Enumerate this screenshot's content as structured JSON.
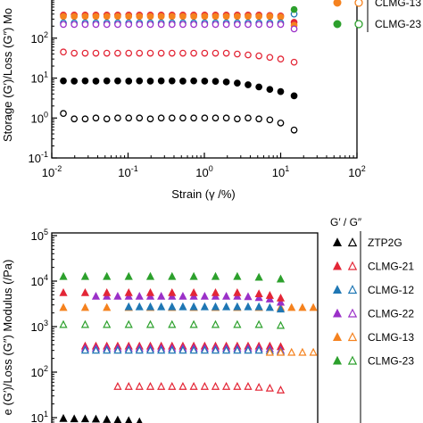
{
  "chart_data": [
    {
      "type": "scatter",
      "panel": "top",
      "xscale": "log",
      "yscale": "log",
      "xlabel": "Strain (γ /%)",
      "ylabel": "Storage (G′)/Loss (G″) Mo",
      "xlim": [
        0.01,
        100
      ],
      "ylim": [
        0.1,
        1000
      ],
      "x_tick_labels": [
        {
          "value": 0.01,
          "base": "10",
          "exp": "-2"
        },
        {
          "value": 0.1,
          "base": "10",
          "exp": "-1"
        },
        {
          "value": 1,
          "base": "10",
          "exp": "0"
        },
        {
          "value": 10,
          "base": "10",
          "exp": "1"
        },
        {
          "value": 100,
          "base": "10",
          "exp": "2"
        }
      ],
      "y_tick_labels": [
        {
          "value": 0.1,
          "base": "10",
          "exp": "-1"
        },
        {
          "value": 1,
          "base": "10",
          "exp": "0"
        },
        {
          "value": 10,
          "base": "10",
          "exp": "1"
        },
        {
          "value": 100,
          "base": "10",
          "exp": "2"
        }
      ],
      "legend": [
        {
          "name": "CLMG-13",
          "color": "#f5821f"
        },
        {
          "name": "CLMG-23",
          "color": "#2ca02c"
        }
      ],
      "series": [
        {
          "color": "#000000",
          "filled": true,
          "marker": "circle",
          "x": [
            0.0142,
            0.0197,
            0.0274,
            0.0379,
            0.0527,
            0.0732,
            0.102,
            0.141,
            0.196,
            0.272,
            0.377,
            0.523,
            0.726,
            1.01,
            1.4,
            1.94,
            2.7,
            3.74,
            5.19,
            7.21,
            10.0,
            15.0
          ],
          "y": [
            8.5,
            8.4,
            8.5,
            8.4,
            8.5,
            8.5,
            8.4,
            8.5,
            8.4,
            8.5,
            8.5,
            8.4,
            8.5,
            8.4,
            8.3,
            8.0,
            7.5,
            6.8,
            6.0,
            5.2,
            4.6,
            3.6
          ]
        },
        {
          "color": "#000000",
          "filled": false,
          "marker": "circle",
          "x": [
            0.0142,
            0.0197,
            0.0274,
            0.0379,
            0.0527,
            0.0732,
            0.102,
            0.141,
            0.196,
            0.272,
            0.377,
            0.523,
            0.726,
            1.01,
            1.4,
            1.94,
            2.7,
            3.74,
            5.19,
            7.21,
            10.0,
            15.0
          ],
          "y": [
            1.3,
            0.95,
            0.95,
            1.0,
            0.95,
            1.0,
            1.0,
            1.0,
            0.95,
            1.0,
            1.0,
            1.0,
            1.0,
            1.0,
            1.0,
            1.0,
            0.95,
            1.0,
            0.95,
            0.9,
            0.75,
            0.5
          ]
        },
        {
          "color": "#e32636",
          "filled": false,
          "marker": "circle",
          "x": [
            0.0142,
            0.0197,
            0.0274,
            0.0379,
            0.0527,
            0.0732,
            0.102,
            0.141,
            0.196,
            0.272,
            0.377,
            0.523,
            0.726,
            1.01,
            1.4,
            1.94,
            2.7,
            3.74,
            5.19,
            7.21,
            10.0,
            15.0
          ],
          "y": [
            45,
            42,
            42,
            42,
            42,
            42,
            42,
            42,
            42,
            42,
            42,
            42,
            42,
            42,
            42,
            42,
            40,
            38,
            36,
            33,
            30,
            25
          ]
        },
        {
          "color": "#e32636",
          "filled": true,
          "marker": "circle",
          "x": [
            0.0142,
            0.0197,
            0.0274,
            0.0379,
            0.0527,
            0.0732,
            0.102,
            0.141,
            0.196,
            0.272,
            0.377,
            0.523,
            0.726,
            1.01,
            1.4,
            1.94,
            2.7,
            3.74,
            5.19,
            7.21,
            10.0,
            15.0
          ],
          "y": [
            380,
            380,
            380,
            380,
            380,
            380,
            380,
            380,
            380,
            380,
            380,
            380,
            380,
            380,
            380,
            380,
            380,
            380,
            380,
            370,
            360,
            250
          ]
        },
        {
          "color": "#f5821f",
          "filled": true,
          "marker": "circle",
          "x": [
            0.0142,
            0.0197,
            0.0274,
            0.0379,
            0.0527,
            0.0732,
            0.102,
            0.141,
            0.196,
            0.272,
            0.377,
            0.523,
            0.726,
            1.01,
            1.4,
            1.94,
            2.7,
            3.74,
            5.19,
            7.21,
            10.0,
            15.0
          ],
          "y": [
            350,
            350,
            350,
            350,
            350,
            350,
            350,
            350,
            350,
            350,
            350,
            350,
            350,
            350,
            350,
            350,
            350,
            350,
            350,
            350,
            340,
            210
          ]
        },
        {
          "color": "#1f77b4",
          "filled": false,
          "marker": "circle",
          "x": [
            0.0142,
            0.0197,
            0.0274,
            0.0379,
            0.0527,
            0.0732,
            0.102,
            0.141,
            0.196,
            0.272,
            0.377,
            0.523,
            0.726,
            1.01,
            1.4,
            1.94,
            2.7,
            3.74,
            5.19,
            7.21,
            10.0,
            15.0
          ],
          "y": [
            240,
            240,
            240,
            240,
            240,
            240,
            240,
            240,
            240,
            240,
            240,
            240,
            240,
            240,
            240,
            240,
            240,
            240,
            240,
            240,
            240,
            400
          ]
        },
        {
          "color": "#9b30c8",
          "filled": false,
          "marker": "circle",
          "x": [
            0.0142,
            0.0197,
            0.0274,
            0.0379,
            0.0527,
            0.0732,
            0.102,
            0.141,
            0.196,
            0.272,
            0.377,
            0.523,
            0.726,
            1.01,
            1.4,
            1.94,
            2.7,
            3.74,
            5.19,
            7.21,
            10.0,
            15.0
          ],
          "y": [
            220,
            220,
            220,
            220,
            220,
            220,
            220,
            220,
            220,
            220,
            220,
            220,
            220,
            220,
            220,
            220,
            220,
            220,
            220,
            220,
            220,
            170
          ]
        },
        {
          "color": "#2ca02c",
          "filled": true,
          "marker": "circle",
          "x": [
            15.0
          ],
          "y": [
            520
          ]
        }
      ]
    },
    {
      "type": "scatter",
      "panel": "bottom",
      "xscale": "log",
      "yscale": "log",
      "ylabel": "e (G′)/Loss (G″) Modulus (/Pa)",
      "ylim": [
        1,
        100000
      ],
      "y_tick_labels": [
        {
          "value": 10,
          "base": "10",
          "exp": "1"
        },
        {
          "value": 100,
          "base": "10",
          "exp": "2"
        },
        {
          "value": 1000,
          "base": "10",
          "exp": "3"
        },
        {
          "value": 10000,
          "base": "10",
          "exp": "4"
        },
        {
          "value": 100000,
          "base": "10",
          "exp": "5"
        }
      ],
      "legend_title": "G′ / G″",
      "legend": [
        {
          "name": "ZTP2G",
          "color": "#000000"
        },
        {
          "name": "CLMG-21",
          "color": "#e32636"
        },
        {
          "name": "CLMG-12",
          "color": "#1f77b4"
        },
        {
          "name": "CLMG-22",
          "color": "#9b30c8"
        },
        {
          "name": "CLMG-13",
          "color": "#f5821f"
        },
        {
          "name": "CLMG-23",
          "color": "#2ca02c"
        }
      ],
      "series": [
        {
          "color": "#000000",
          "filled": true,
          "marker": "triangle",
          "x": [
            0.0142,
            0.0197,
            0.0274,
            0.0379,
            0.0527,
            0.0732,
            0.102,
            0.141,
            0.196,
            0.272,
            0.377,
            0.523,
            0.726,
            1.01
          ],
          "y": [
            9.5,
            9.3,
            9.3,
            9.2,
            9.0,
            8.8,
            8.5,
            8.0,
            7.0,
            5.6,
            4.3,
            3.0,
            2.0,
            1.2
          ]
        },
        {
          "color": "#e32636",
          "filled": false,
          "marker": "triangle",
          "x": [
            0.0732,
            0.102,
            0.141,
            0.196,
            0.272,
            0.377,
            0.523,
            0.726,
            1.01,
            1.4,
            1.94,
            2.7,
            3.74,
            5.19,
            7.21,
            10.0
          ],
          "y": [
            48,
            48,
            48,
            48,
            48,
            48,
            48,
            48,
            48,
            48,
            48,
            48,
            48,
            46,
            44,
            40
          ]
        },
        {
          "color": "#e32636",
          "filled": true,
          "marker": "triangle",
          "x": [
            0.0274,
            0.0379,
            0.0527,
            0.0732,
            0.102,
            0.141,
            0.196,
            0.272,
            0.377,
            0.523,
            0.726,
            1.01,
            1.4,
            1.94,
            2.7,
            3.74,
            5.19,
            7.21,
            10.0
          ],
          "y": [
            370,
            370,
            370,
            370,
            370,
            370,
            370,
            370,
            370,
            370,
            370,
            370,
            370,
            370,
            370,
            370,
            370,
            370,
            360
          ]
        },
        {
          "color": "#9b30c8",
          "filled": false,
          "marker": "triangle",
          "x": [
            0.0274,
            0.0379,
            0.0527,
            0.0732,
            0.102,
            0.141,
            0.196,
            0.272,
            0.377,
            0.523,
            0.726,
            1.01,
            1.4,
            1.94,
            2.7,
            3.74,
            5.19,
            7.21,
            10.0
          ],
          "y": [
            330,
            330,
            330,
            330,
            330,
            330,
            330,
            330,
            330,
            330,
            330,
            330,
            330,
            330,
            330,
            330,
            330,
            320,
            300
          ]
        },
        {
          "color": "#1f77b4",
          "filled": false,
          "marker": "triangle",
          "x": [
            0.0274,
            0.0379,
            0.0527,
            0.0732,
            0.102,
            0.141,
            0.196,
            0.272,
            0.377,
            0.523,
            0.726,
            1.01,
            1.4,
            1.94,
            2.7,
            3.74,
            5.19,
            7.21,
            10.0
          ],
          "y": [
            300,
            300,
            300,
            300,
            300,
            300,
            300,
            300,
            300,
            300,
            300,
            300,
            300,
            300,
            300,
            300,
            300,
            290,
            280
          ]
        },
        {
          "color": "#f5821f",
          "filled": false,
          "marker": "triangle",
          "x": [
            7.21,
            10.0,
            13.9,
            19.3,
            26.8,
            37.2,
            51.7,
            71.8
          ],
          "y": [
            270,
            270,
            270,
            270,
            270,
            270,
            270,
            270
          ]
        },
        {
          "color": "#2ca02c",
          "filled": false,
          "marker": "triangle",
          "x": [
            0.0142,
            0.0274,
            0.0527,
            0.102,
            0.196,
            0.377,
            0.726,
            1.4,
            2.7,
            5.19,
            10.0
          ],
          "y": [
            1100,
            1100,
            1100,
            1100,
            1100,
            1100,
            1100,
            1100,
            1100,
            1100,
            1050
          ]
        },
        {
          "color": "#f5821f",
          "filled": true,
          "marker": "triangle",
          "x": [
            0.0142,
            0.0274,
            0.0527,
            0.102,
            0.196,
            0.377,
            0.726,
            1.4,
            2.7,
            5.19,
            10.0,
            13.9,
            19.3,
            26.8,
            37.2,
            51.7,
            71.8
          ],
          "y": [
            2600,
            2600,
            2600,
            2600,
            2600,
            2600,
            2600,
            2600,
            2600,
            2600,
            2600,
            2600,
            2600,
            2600,
            2500,
            2200,
            1600
          ]
        },
        {
          "color": "#1f77b4",
          "filled": true,
          "marker": "triangle",
          "x": [
            0.102,
            0.141,
            0.196,
            0.272,
            0.377,
            0.523,
            0.726,
            1.01,
            1.4,
            1.94,
            2.7,
            3.74,
            5.19,
            7.21,
            10.0
          ],
          "y": [
            2700,
            2700,
            2700,
            2700,
            2700,
            2700,
            2700,
            2700,
            2700,
            2700,
            2700,
            2700,
            2700,
            2600,
            2400
          ]
        },
        {
          "color": "#9b30c8",
          "filled": true,
          "marker": "triangle",
          "x": [
            0.0379,
            0.0527,
            0.0732,
            0.102,
            0.141,
            0.196,
            0.272,
            0.377,
            0.523,
            0.726,
            1.01,
            1.4,
            1.94,
            2.7,
            3.74,
            5.19,
            7.21,
            10.0
          ],
          "y": [
            4600,
            4600,
            4600,
            4600,
            4600,
            4600,
            4600,
            4600,
            4600,
            4600,
            4600,
            4600,
            4600,
            4600,
            4500,
            4300,
            4000,
            3400
          ]
        },
        {
          "color": "#e32636",
          "filled": true,
          "marker": "triangle",
          "x": [
            0.0142,
            0.0274,
            0.0527,
            0.102,
            0.196,
            0.377,
            0.726,
            1.4,
            2.7,
            5.19,
            7.21,
            10.0
          ],
          "y": [
            5500,
            5500,
            5500,
            5500,
            5500,
            5500,
            5500,
            5500,
            5500,
            5200,
            4800,
            4200
          ]
        },
        {
          "color": "#2ca02c",
          "filled": true,
          "marker": "triangle",
          "x": [
            0.0142,
            0.0274,
            0.0527,
            0.102,
            0.196,
            0.377,
            0.726,
            1.4,
            2.7,
            5.19,
            10.0
          ],
          "y": [
            12500,
            12500,
            12500,
            12500,
            12500,
            12500,
            12500,
            12500,
            12500,
            12000,
            11000
          ]
        }
      ]
    }
  ]
}
